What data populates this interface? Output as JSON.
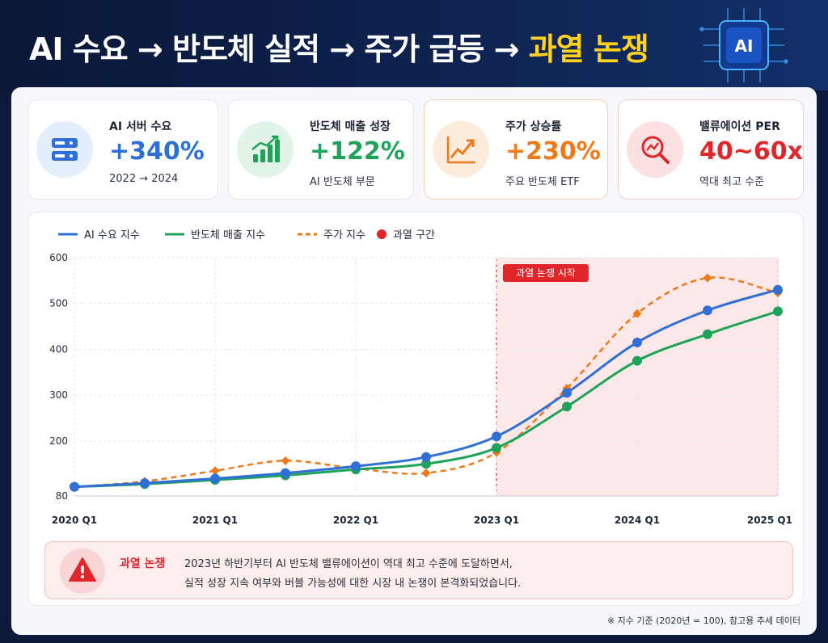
{
  "header": {
    "title_main": "AI 수요 → 반도체 실적 → 주가 급등 → ",
    "title_highlight": "과열 논쟁",
    "chip_text": "AI"
  },
  "cards": [
    {
      "label": "AI 서버 수요",
      "value": "+340%",
      "sub": "2022 → 2024",
      "icon": "server-icon",
      "accent": "#2f6fd6"
    },
    {
      "label": "반도체 매출 성장",
      "value": "+122%",
      "sub": "AI 반도체 부문",
      "icon": "growth-bars-icon",
      "accent": "#1fa35a"
    },
    {
      "label": "주가 상승률",
      "value": "+230%",
      "sub": "주요 반도체 ETF",
      "icon": "trend-up-icon",
      "accent": "#f07a1a"
    },
    {
      "label": "밸류에이션 PER",
      "value": "40~60x",
      "sub": "역대 최고 수준",
      "icon": "magnifier-chart-icon",
      "accent": "#e0262b"
    }
  ],
  "chart_data": {
    "type": "line",
    "x": [
      "2020 Q1",
      "2020 Q3",
      "2021 Q1",
      "2021 Q3",
      "2022 Q1",
      "2022 Q3",
      "2023 Q1",
      "2023 Q3",
      "2024 Q1",
      "2024 Q3",
      "2025 Q1"
    ],
    "x_tick_labels": [
      "2020 Q1",
      "2021 Q1",
      "2022 Q1",
      "2023 Q1",
      "2024 Q1",
      "2025 Q1"
    ],
    "y_ticks": [
      80,
      200,
      300,
      400,
      500,
      600
    ],
    "ylim": [
      80,
      600
    ],
    "grid": true,
    "legend_position": "top-left",
    "series": [
      {
        "name": "AI 수요 지수",
        "color": "#2f6fd6",
        "style": "solid",
        "marker": "circle",
        "values": [
          100,
          108,
          118,
          130,
          145,
          165,
          210,
          305,
          415,
          485,
          530
        ]
      },
      {
        "name": "반도체 매출 지수",
        "color": "#1fa35a",
        "style": "solid",
        "marker": "circle",
        "values": [
          100,
          106,
          115,
          125,
          138,
          150,
          185,
          275,
          375,
          433,
          483
        ]
      },
      {
        "name": "주가 지수",
        "color": "#f07a1a",
        "style": "dashed",
        "marker": "diamond",
        "values": [
          100,
          112,
          135,
          157,
          140,
          130,
          175,
          315,
          478,
          556,
          523
        ]
      }
    ],
    "legend_extra": {
      "name": "과열 구간",
      "color": "#e0262b"
    },
    "overheat_region": {
      "x_start": "2023 Q1",
      "x_end": "2025 Q1",
      "label": "과열 논쟁 시작"
    }
  },
  "alert": {
    "title": "과열 논쟁",
    "line1": "2023년 하반기부터 AI 반도체 밸류에이션이 역대 최고 수준에 도달하면서,",
    "line2": "실적 성장 지속 여부와 버블 가능성에 대한 시장 내 논쟁이 본격화되었습니다."
  },
  "footnote": "※ 지수 기준 (2020년 = 100), 참고용 추세 데이터"
}
